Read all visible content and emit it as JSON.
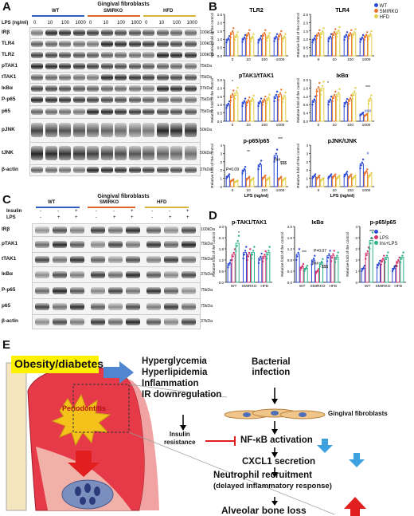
{
  "panelA": {
    "label": "A",
    "title": "Gingival fibroblasts",
    "groups": [
      {
        "name": "WT",
        "color": "#2e5fbf"
      },
      {
        "name": "SMIRKO",
        "color": "#e0662a"
      },
      {
        "name": "HFD",
        "color": "#d8b43a"
      }
    ],
    "lps_label": "LPS (ng/ml)",
    "doses": [
      "0",
      "10",
      "100",
      "1000",
      "0",
      "10",
      "100",
      "1000",
      "0",
      "10",
      "100",
      "1000"
    ],
    "rows": [
      {
        "name": "IRβ",
        "kda": "100kDa"
      },
      {
        "name": "TLR4",
        "kda": "100kDa"
      },
      {
        "name": "TLR2",
        "kda": "100kDa"
      },
      {
        "name": "pTAK1",
        "kda": "75kDa"
      },
      {
        "name": "tTAK1",
        "kda": "75kDa"
      },
      {
        "name": "IκBα",
        "kda": "37kDa"
      },
      {
        "name": "P-p65",
        "kda": "75kDa"
      },
      {
        "name": "p65",
        "kda": "75kDa"
      },
      {
        "name": "pJNK",
        "kda": "50kDa"
      },
      {
        "name": "tJNK",
        "kda": "50kDa"
      },
      {
        "name": "β-actin",
        "kda": "37kDa"
      }
    ],
    "extra_kda": [
      "75kDa",
      "25kDa"
    ]
  },
  "panelB": {
    "label": "B",
    "legend": [
      {
        "name": "WT",
        "color": "#2b4bd6"
      },
      {
        "name": "SMIRKO",
        "color": "#e8742f"
      },
      {
        "name": "HFD",
        "color": "#e3cf4a"
      }
    ],
    "ylabel": "Relative fold of the control",
    "xlabel": "LPS (ng/ml)",
    "xticks": [
      "0",
      "10",
      "100",
      "1000"
    ],
    "yticks_main": [
      "0.0",
      "0.5",
      "1.0",
      "1.5",
      "2.0",
      "2.5"
    ],
    "yticks_ikb": [
      "0.0",
      "0.5",
      "1.0",
      "1.5",
      "2.0"
    ],
    "yticks_pp65": [
      "0",
      "1",
      "2",
      "3",
      "4"
    ],
    "plots": [
      "TLR2",
      "TLR4",
      "pTAK1/tTAK1",
      "IκBα",
      "p-p65/p65",
      "pJNK/tJNK"
    ],
    "annotations": {
      "pval": "P=0.09",
      "hash": "###",
      "sss": "$$$",
      "star": "*",
      "stars2": "**",
      "stars3": "***",
      "hash1": "#"
    }
  },
  "chart_data": [
    {
      "type": "bar",
      "title": "TLR2",
      "categories": [
        "0",
        "10",
        "100",
        "1000"
      ],
      "xlabel": "",
      "ylabel": "Relative fold of the control",
      "ylim": [
        0,
        2.5
      ],
      "series": [
        {
          "name": "WT",
          "values": [
            1.0,
            1.05,
            1.0,
            1.1
          ]
        },
        {
          "name": "SMIRKO",
          "values": [
            1.4,
            1.3,
            1.3,
            1.25
          ]
        },
        {
          "name": "HFD",
          "values": [
            1.2,
            1.1,
            1.15,
            1.1
          ]
        }
      ]
    },
    {
      "type": "bar",
      "title": "TLR4",
      "categories": [
        "0",
        "10",
        "100",
        "1000"
      ],
      "xlabel": "",
      "ylabel": "Relative fold of the control",
      "ylim": [
        0,
        2.5
      ],
      "series": [
        {
          "name": "WT",
          "values": [
            1.0,
            1.1,
            1.2,
            1.05
          ]
        },
        {
          "name": "SMIRKO",
          "values": [
            1.3,
            1.35,
            1.3,
            1.2
          ]
        },
        {
          "name": "HFD",
          "values": [
            1.4,
            1.45,
            1.35,
            1.25
          ]
        }
      ]
    },
    {
      "type": "bar",
      "title": "pTAK1/tTAK1",
      "categories": [
        "0",
        "10",
        "100",
        "1000"
      ],
      "xlabel": "",
      "ylabel": "Relative fold of the control",
      "ylim": [
        0,
        2.5
      ],
      "series": [
        {
          "name": "WT",
          "values": [
            1.0,
            1.15,
            1.15,
            1.5
          ]
        },
        {
          "name": "SMIRKO",
          "values": [
            1.55,
            1.2,
            1.25,
            1.6
          ]
        },
        {
          "name": "HFD",
          "values": [
            1.7,
            1.3,
            1.35,
            1.45
          ]
        }
      ]
    },
    {
      "type": "bar",
      "title": "IκBα",
      "categories": [
        "0",
        "10",
        "100",
        "1000"
      ],
      "xlabel": "",
      "ylabel": "Relative fold of the control",
      "ylim": [
        0,
        2.0
      ],
      "series": [
        {
          "name": "WT",
          "values": [
            1.0,
            1.0,
            0.9,
            0.35
          ]
        },
        {
          "name": "SMIRKO",
          "values": [
            1.55,
            1.2,
            1.05,
            0.3
          ]
        },
        {
          "name": "HFD",
          "values": [
            1.6,
            1.3,
            1.35,
            1.05
          ]
        }
      ]
    },
    {
      "type": "bar",
      "title": "p-p65/p65",
      "categories": [
        "0",
        "10",
        "100",
        "1000"
      ],
      "xlabel": "LPS (ng/ml)",
      "ylabel": "Relative fold of the control",
      "ylim": [
        0,
        4
      ],
      "series": [
        {
          "name": "WT",
          "values": [
            1.0,
            1.6,
            2.1,
            3.0
          ]
        },
        {
          "name": "SMIRKO",
          "values": [
            0.6,
            0.8,
            0.9,
            0.8
          ]
        },
        {
          "name": "HFD",
          "values": [
            0.5,
            0.7,
            0.75,
            0.7
          ]
        }
      ]
    },
    {
      "type": "bar",
      "title": "pJNK/tJNK",
      "categories": [
        "0",
        "10",
        "100",
        "1000"
      ],
      "xlabel": "LPS (ng/ml)",
      "ylabel": "Relative fold of the control",
      "ylim": [
        0,
        4
      ],
      "series": [
        {
          "name": "WT",
          "values": [
            1.0,
            1.0,
            1.2,
            2.2
          ]
        },
        {
          "name": "SMIRKO",
          "values": [
            0.9,
            1.0,
            1.0,
            1.4
          ]
        },
        {
          "name": "HFD",
          "values": [
            0.7,
            0.9,
            0.9,
            1.1
          ]
        }
      ]
    },
    {
      "type": "bar",
      "title": "p-TAK1/TAK1",
      "categories": [
        "WT",
        "SMIRKO",
        "HFD"
      ],
      "xlabel": "",
      "ylabel": "Relative fold of the control",
      "ylim": [
        0,
        3
      ],
      "series": [
        {
          "name": "-",
          "values": [
            1.0,
            1.6,
            1.3
          ]
        },
        {
          "name": "LPS",
          "values": [
            1.5,
            1.5,
            1.4
          ]
        },
        {
          "name": "Ins+LPS",
          "values": [
            2.1,
            1.6,
            1.6
          ]
        }
      ]
    },
    {
      "type": "bar",
      "title": "IκBα",
      "categories": [
        "WT",
        "SMIRKO",
        "HFD"
      ],
      "xlabel": "",
      "ylabel": "Relative fold of the control",
      "ylim": [
        0,
        2
      ],
      "series": [
        {
          "name": "-",
          "values": [
            1.0,
            0.8,
            0.95
          ]
        },
        {
          "name": "LPS",
          "values": [
            0.55,
            0.4,
            0.95
          ]
        },
        {
          "name": "Ins+LPS",
          "values": [
            0.5,
            0.7,
            0.9
          ]
        }
      ]
    },
    {
      "type": "bar",
      "title": "p-p65/p65",
      "categories": [
        "WT",
        "SMIRKO",
        "HFD"
      ],
      "xlabel": "",
      "ylabel": "Relative fold of the control",
      "ylim": [
        0,
        4
      ],
      "series": [
        {
          "name": "-",
          "values": [
            1.0,
            1.3,
            1.0
          ]
        },
        {
          "name": "LPS",
          "values": [
            2.1,
            1.6,
            1.5
          ]
        },
        {
          "name": "Ins+LPS",
          "values": [
            3.0,
            1.8,
            1.8
          ]
        }
      ]
    }
  ],
  "panelC": {
    "label": "C",
    "title": "Gingival fibroblasts",
    "groups": [
      "WT",
      "SMIRKO",
      "HFD"
    ],
    "treat_rows": [
      {
        "name": "Insulin",
        "signs": [
          "-",
          "-",
          "+",
          "-",
          "-",
          "+",
          "-",
          "-",
          "+"
        ]
      },
      {
        "name": "LPS",
        "signs": [
          "-",
          "+",
          "+",
          "-",
          "+",
          "+",
          "-",
          "+",
          "+"
        ]
      }
    ],
    "rows": [
      {
        "name": "IRβ",
        "kda": "100kDa"
      },
      {
        "name": "pTAK1",
        "kda": "75kDa"
      },
      {
        "name": "tTAK1",
        "kda": "75kDa"
      },
      {
        "name": "IκBα",
        "kda": "37kDa"
      },
      {
        "name": "P-p65",
        "kda": "75kDa"
      },
      {
        "name": "p65",
        "kda": "75kDa"
      },
      {
        "name": "β-actin",
        "kda": "37kDa"
      }
    ],
    "extra_kda": [
      "25kDa"
    ]
  },
  "panelD": {
    "label": "D",
    "legend": [
      {
        "name": "-",
        "color": "#2b4bd6"
      },
      {
        "name": "LPS",
        "color": "#d6336c"
      },
      {
        "name": "Ins+LPS",
        "color": "#2bb38a"
      }
    ],
    "ylabel": "Relative fold of the control",
    "annotations": {
      "p007": "P=0.07",
      "hash": "###",
      "sss": "$$$",
      "stars3": "***",
      "star": "*",
      "stars2": "**"
    }
  },
  "panelE": {
    "label": "E",
    "obesity": "Obesity/diabetes",
    "effects": [
      "Hyperglycemia",
      "Hyperlipidemia",
      "Inflammation",
      "IR downregulation"
    ],
    "bacterial": "Bacterial\ninfection",
    "fibroblasts": "Gingival fibroblasts",
    "insulin_resistance": "Insulin\nresistance",
    "periodontitis": "Periodontitis",
    "nfkb": "NF-κB activation",
    "cxcl1": "CXCL1 secretion",
    "neutrophil": "Neutrophil recruitment",
    "delayed": "(delayed inflammatory response)",
    "bone": "Alveolar bone loss"
  }
}
